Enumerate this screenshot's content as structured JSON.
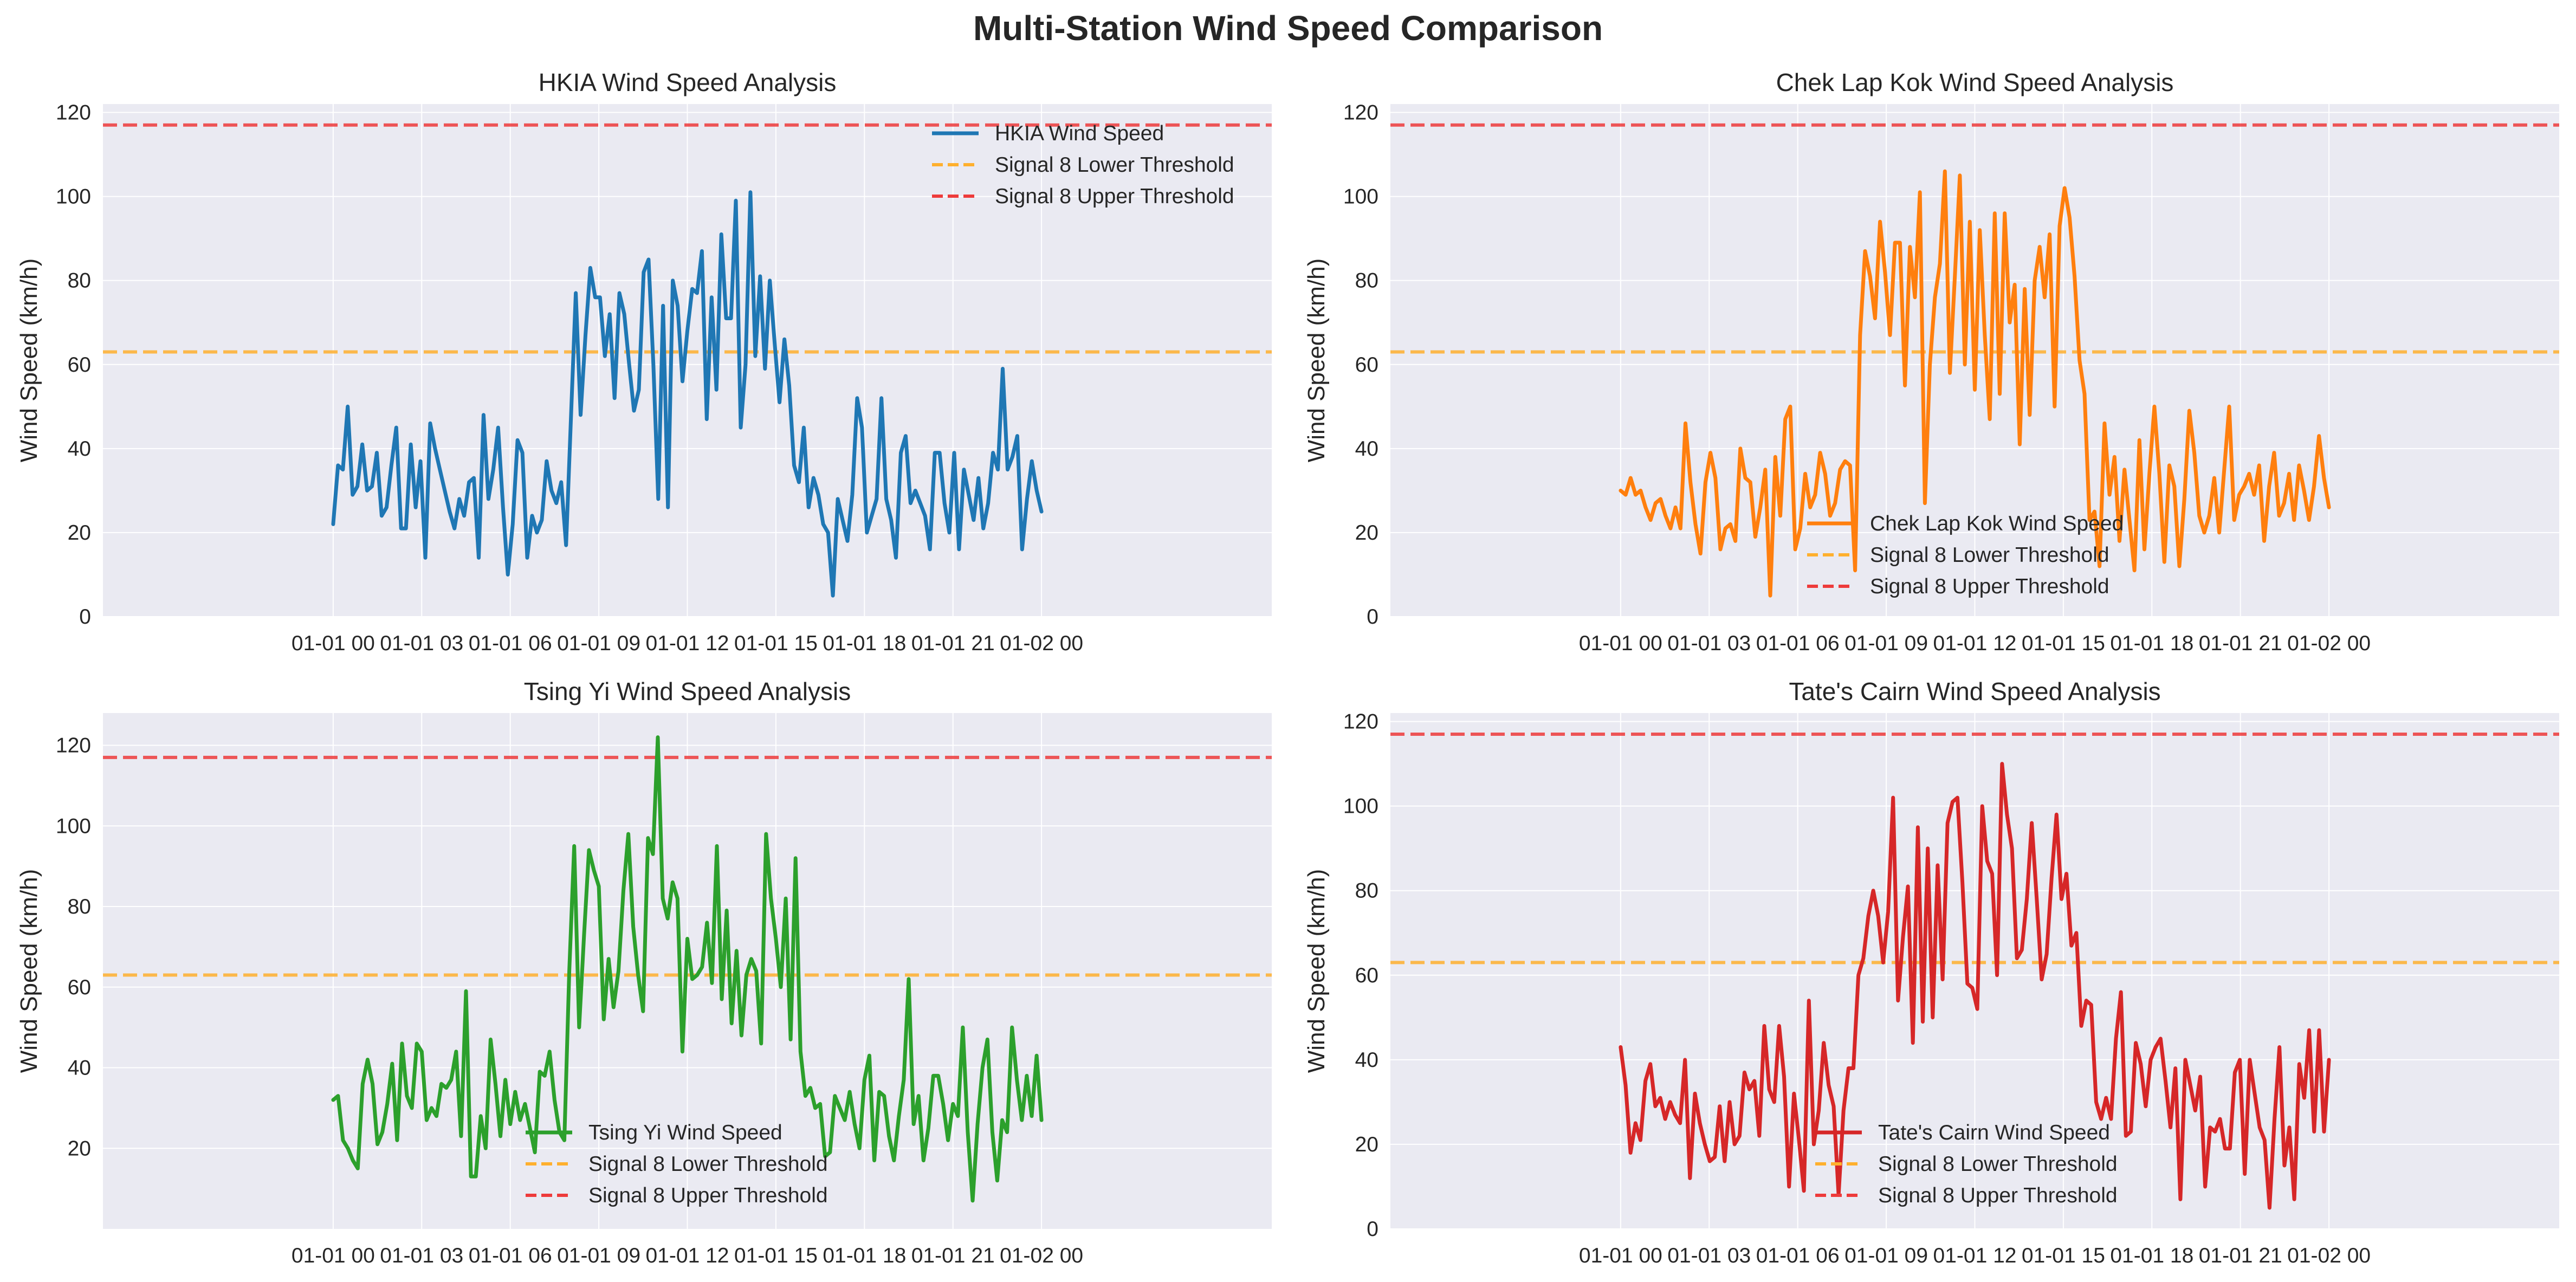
{
  "figure": {
    "title": "Multi-Station Wind Speed Comparison",
    "x_tick_labels": [
      "01-01 00",
      "01-01 03",
      "01-01 06",
      "01-01 09",
      "01-01 12",
      "01-01 15",
      "01-01 18",
      "01-01 21",
      "01-02 00"
    ]
  },
  "colors": {
    "axes_bg": "#eaeaf2",
    "grid": "#ffffff",
    "text": "#262626",
    "lower_threshold": "#ffb02e",
    "upper_threshold": "#ee3b3b"
  },
  "chart_data": [
    {
      "type": "line",
      "title": "HKIA Wind Speed Analysis",
      "xlabel": "",
      "ylabel": "Wind Speed (km/h)",
      "x_start": "01-01 00",
      "x_end": "01-02 00",
      "x_step": "10min",
      "ylim": [
        0,
        122
      ],
      "y_ticks": [
        0,
        20,
        40,
        60,
        80,
        100,
        120
      ],
      "grid": true,
      "legend": "top-right",
      "color": "#1f77b4",
      "thresholds": [
        {
          "name": "Signal 8 Lower Threshold",
          "value": 63
        },
        {
          "name": "Signal 8 Upper Threshold",
          "value": 117
        }
      ],
      "series": [
        {
          "name": "HKIA Wind Speed",
          "values": [
            22,
            36,
            35,
            50,
            29,
            31,
            41,
            30,
            31,
            39,
            24,
            26,
            36,
            45,
            21,
            21,
            41,
            26,
            37,
            14,
            46,
            40,
            35,
            30,
            25,
            21,
            28,
            24,
            32,
            33,
            14,
            48,
            28,
            35,
            45,
            26,
            10,
            22,
            42,
            39,
            14,
            24,
            20,
            23,
            37,
            30,
            27,
            32,
            17,
            47,
            77,
            48,
            67,
            83,
            76,
            76,
            62,
            72,
            52,
            77,
            72,
            60,
            49,
            54,
            82,
            85,
            60,
            28,
            74,
            26,
            80,
            74,
            56,
            68,
            78,
            77,
            87,
            47,
            76,
            54,
            91,
            71,
            71,
            99,
            45,
            60,
            101,
            62,
            81,
            59,
            80,
            65,
            51,
            66,
            55,
            36,
            32,
            45,
            26,
            33,
            29,
            22,
            20,
            5,
            28,
            23,
            18,
            29,
            52,
            45,
            20,
            24,
            28,
            52,
            28,
            23,
            14,
            39,
            43,
            27,
            30,
            27,
            24,
            16,
            39,
            39,
            27,
            20,
            39,
            16,
            35,
            29,
            23,
            33,
            21,
            27,
            39,
            35,
            59,
            35,
            38,
            43,
            16,
            28,
            37,
            30,
            25
          ]
        }
      ]
    },
    {
      "type": "line",
      "title": "Chek Lap Kok Wind Speed Analysis",
      "xlabel": "",
      "ylabel": "Wind Speed (km/h)",
      "x_start": "01-01 00",
      "x_end": "01-02 00",
      "x_step": "10min",
      "ylim": [
        0,
        122
      ],
      "y_ticks": [
        0,
        20,
        40,
        60,
        80,
        100,
        120
      ],
      "grid": true,
      "legend": "lower-center",
      "color": "#ff7f0e",
      "thresholds": [
        {
          "name": "Signal 8 Lower Threshold",
          "value": 63
        },
        {
          "name": "Signal 8 Upper Threshold",
          "value": 117
        }
      ],
      "series": [
        {
          "name": "Chek Lap Kok Wind Speed",
          "values": [
            30,
            29,
            33,
            29,
            30,
            26,
            23,
            27,
            28,
            24,
            21,
            26,
            21,
            46,
            32,
            22,
            15,
            32,
            39,
            33,
            16,
            21,
            22,
            18,
            40,
            33,
            32,
            19,
            26,
            35,
            5,
            38,
            24,
            47,
            50,
            16,
            21,
            34,
            26,
            29,
            39,
            34,
            24,
            27,
            35,
            37,
            36,
            11,
            67,
            87,
            81,
            71,
            94,
            82,
            67,
            89,
            89,
            55,
            88,
            76,
            101,
            27,
            60,
            76,
            84,
            106,
            58,
            81,
            105,
            60,
            94,
            54,
            92,
            67,
            47,
            96,
            53,
            96,
            70,
            79,
            41,
            78,
            48,
            80,
            88,
            76,
            91,
            50,
            93,
            102,
            95,
            81,
            61,
            53,
            23,
            25,
            12,
            46,
            29,
            38,
            18,
            35,
            23,
            11,
            42,
            16,
            34,
            50,
            34,
            13,
            36,
            31,
            12,
            28,
            49,
            39,
            24,
            20,
            24,
            33,
            20,
            35,
            50,
            23,
            29,
            31,
            34,
            29,
            36,
            18,
            31,
            39,
            24,
            27,
            34,
            23,
            36,
            30,
            23,
            31,
            43,
            33,
            26
          ]
        }
      ]
    },
    {
      "type": "line",
      "title": "Tsing Yi Wind Speed Analysis",
      "xlabel": "",
      "ylabel": "Wind Speed (km/h)",
      "x_start": "01-01 00",
      "x_end": "01-02 00",
      "x_step": "10min",
      "ylim": [
        0,
        128
      ],
      "y_ticks": [
        20,
        40,
        60,
        80,
        100,
        120
      ],
      "grid": true,
      "legend": "lower-center",
      "color": "#2ca02c",
      "thresholds": [
        {
          "name": "Signal 8 Lower Threshold",
          "value": 63
        },
        {
          "name": "Signal 8 Upper Threshold",
          "value": 117
        }
      ],
      "series": [
        {
          "name": "Tsing Yi Wind Speed",
          "values": [
            32,
            33,
            22,
            20,
            17,
            15,
            36,
            42,
            36,
            21,
            24,
            31,
            41,
            22,
            46,
            33,
            30,
            46,
            44,
            27,
            30,
            28,
            36,
            35,
            37,
            44,
            23,
            59,
            13,
            13,
            28,
            20,
            47,
            36,
            23,
            37,
            26,
            34,
            27,
            31,
            25,
            19,
            39,
            38,
            44,
            32,
            24,
            22,
            64,
            95,
            50,
            73,
            94,
            89,
            85,
            52,
            67,
            55,
            64,
            84,
            98,
            75,
            63,
            54,
            97,
            93,
            122,
            82,
            77,
            86,
            82,
            44,
            72,
            62,
            63,
            65,
            76,
            61,
            95,
            57,
            79,
            51,
            69,
            48,
            63,
            67,
            64,
            46,
            98,
            82,
            72,
            60,
            82,
            47,
            92,
            44,
            33,
            35,
            30,
            31,
            18,
            19,
            33,
            30,
            27,
            34,
            26,
            20,
            37,
            43,
            17,
            34,
            33,
            23,
            17,
            28,
            37,
            62,
            26,
            33,
            17,
            25,
            38,
            38,
            31,
            22,
            31,
            28,
            50,
            24,
            7,
            26,
            40,
            47,
            24,
            12,
            27,
            24,
            50,
            37,
            27,
            38,
            28,
            43,
            27
          ]
        }
      ]
    },
    {
      "type": "line",
      "title": "Tate's Cairn Wind Speed Analysis",
      "xlabel": "",
      "ylabel": "Wind Speed (km/h)",
      "x_start": "01-01 00",
      "x_end": "01-02 00",
      "x_step": "10min",
      "ylim": [
        0,
        122
      ],
      "y_ticks": [
        0,
        20,
        40,
        60,
        80,
        100,
        120
      ],
      "grid": true,
      "legend": "lower-center",
      "color": "#d62728",
      "thresholds": [
        {
          "name": "Signal 8 Lower Threshold",
          "value": 63
        },
        {
          "name": "Signal 8 Upper Threshold",
          "value": 117
        }
      ],
      "series": [
        {
          "name": "Tate's Cairn Wind Speed",
          "values": [
            43,
            34,
            18,
            25,
            21,
            35,
            39,
            29,
            31,
            26,
            30,
            27,
            25,
            40,
            12,
            32,
            25,
            20,
            16,
            17,
            29,
            16,
            30,
            20,
            22,
            37,
            33,
            35,
            22,
            48,
            33,
            30,
            48,
            36,
            10,
            32,
            21,
            9,
            54,
            20,
            28,
            44,
            34,
            29,
            8,
            28,
            38,
            38,
            60,
            64,
            74,
            80,
            74,
            63,
            75,
            102,
            54,
            69,
            81,
            44,
            95,
            49,
            90,
            50,
            86,
            59,
            96,
            101,
            102,
            82,
            58,
            57,
            52,
            100,
            87,
            84,
            60,
            110,
            98,
            90,
            64,
            66,
            78,
            96,
            78,
            59,
            65,
            83,
            98,
            78,
            84,
            67,
            70,
            48,
            54,
            53,
            30,
            26,
            31,
            26,
            45,
            56,
            22,
            23,
            44,
            39,
            29,
            40,
            43,
            45,
            35,
            24,
            38,
            7,
            40,
            34,
            28,
            36,
            10,
            24,
            23,
            26,
            19,
            19,
            37,
            40,
            13,
            40,
            32,
            24,
            21,
            5,
            26,
            43,
            15,
            24,
            7,
            39,
            31,
            47,
            23,
            47,
            23,
            40
          ]
        }
      ]
    }
  ]
}
